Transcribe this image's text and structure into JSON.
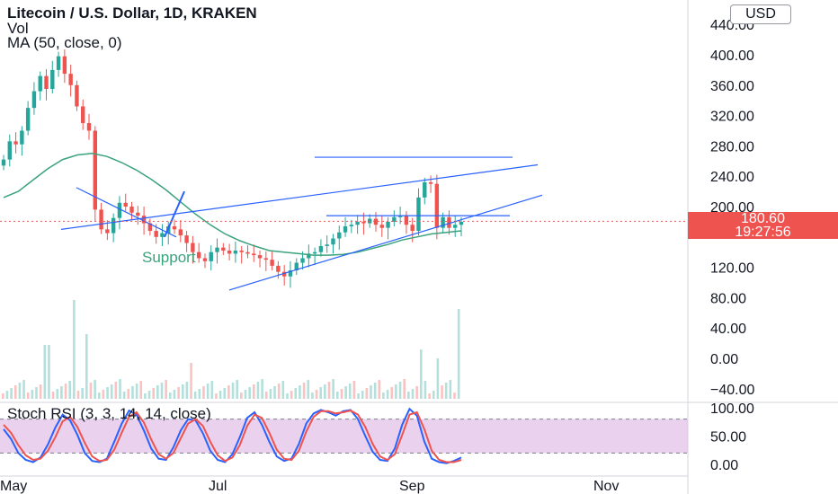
{
  "header": {
    "title": "Litecoin / U.S. Dollar, 1D, KRAKEN",
    "vol_label": "Vol",
    "ma_label": "MA (50, close, 0)",
    "currency": "USD"
  },
  "price_tag": {
    "price": "180.60",
    "countdown": "19:27:56"
  },
  "colors": {
    "up": "#26a69a",
    "down": "#ef5350",
    "ma": "#3aa37c",
    "trendline": "#2962ff",
    "stoch_k": "#2962ff",
    "stoch_d": "#ef5350",
    "rsi_band": "#e1bee7"
  },
  "annotations": {
    "support_text": "Support"
  },
  "stoch_label": "Stoch RSI (3, 3, 14, 14, close)",
  "chart_data": [
    {
      "type": "candlestick",
      "title": "Litecoin / U.S. Dollar, 1D, KRAKEN",
      "y_ticks": [
        "440.00",
        "400.00",
        "360.00",
        "320.00",
        "280.00",
        "240.00",
        "200.00",
        "120.00",
        "80.00",
        "40.00",
        "0.00",
        "−40.00"
      ],
      "x_ticks": [
        "May",
        "Jul",
        "Sep",
        "Nov"
      ],
      "ylim": [
        -45,
        445
      ],
      "last_price": 180.6,
      "ohlc_closes_sampled": [
        262,
        286,
        282,
        300,
        330,
        352,
        372,
        355,
        380,
        398,
        375,
        360,
        332,
        310,
        300,
        196,
        170,
        165,
        185,
        205,
        200,
        192,
        188,
        178,
        168,
        160,
        165,
        174,
        170,
        162,
        152,
        140,
        132,
        128,
        140,
        146,
        142,
        138,
        142,
        140,
        138,
        136,
        132,
        130,
        122,
        114,
        108,
        116,
        126,
        132,
        138,
        140,
        148,
        150,
        158,
        166,
        174,
        176,
        180,
        178,
        184,
        176,
        172,
        180,
        186,
        188,
        176,
        168,
        212,
        232,
        230,
        172,
        186,
        172,
        176,
        180
      ],
      "ma50_sampled": [
        212,
        220,
        235,
        250,
        262,
        268,
        270,
        266,
        258,
        248,
        236,
        222,
        206,
        190,
        176,
        164,
        155,
        148,
        142,
        140,
        138,
        136,
        136,
        137,
        140,
        145,
        150,
        156,
        160,
        164,
        166,
        168
      ],
      "volume_note": "volume bars with spikes near May, mid Aug and Sep"
    },
    {
      "type": "line",
      "title": "Stoch RSI (3, 3, 14, 14, close)",
      "y_ticks": [
        "100.00",
        "50.00",
        "0.00"
      ],
      "ylim": [
        0,
        100
      ],
      "band": [
        20,
        80
      ],
      "series": [
        {
          "name": "K",
          "values": [
            62,
            45,
            20,
            8,
            4,
            12,
            35,
            65,
            88,
            78,
            52,
            20,
            6,
            4,
            10,
            40,
            72,
            95,
            88,
            60,
            28,
            10,
            8,
            30,
            60,
            80,
            78,
            55,
            24,
            8,
            4,
            18,
            48,
            82,
            92,
            70,
            40,
            14,
            6,
            10,
            36,
            72,
            90,
            96,
            92,
            86,
            94,
            96,
            80,
            50,
            22,
            8,
            6,
            28,
            70,
            98,
            86,
            40,
            10,
            4,
            2,
            6,
            12
          ]
        },
        {
          "name": "D",
          "values": [
            70,
            56,
            34,
            16,
            8,
            10,
            24,
            48,
            76,
            84,
            66,
            38,
            14,
            6,
            8,
            26,
            56,
            84,
            92,
            74,
            44,
            18,
            10,
            20,
            46,
            72,
            80,
            68,
            40,
            16,
            6,
            12,
            34,
            68,
            88,
            82,
            56,
            26,
            10,
            8,
            24,
            58,
            84,
            94,
            94,
            90,
            92,
            95,
            88,
            66,
            36,
            14,
            8,
            18,
            52,
            88,
            92,
            62,
            24,
            8,
            4,
            4,
            8
          ]
        }
      ]
    }
  ]
}
